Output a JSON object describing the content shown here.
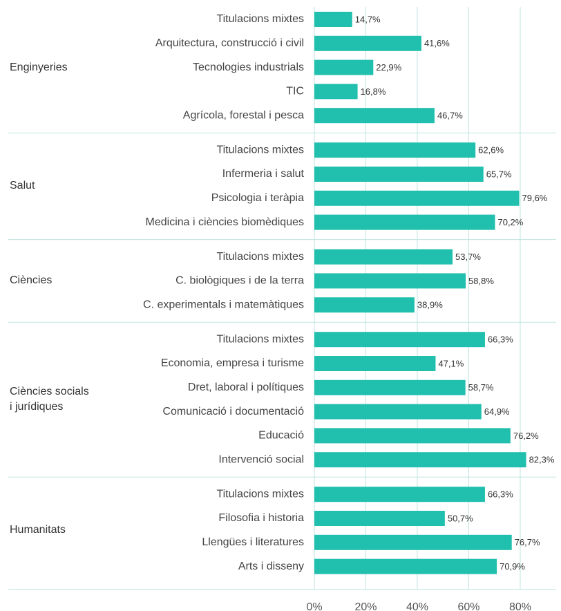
{
  "chart_data": {
    "type": "bar",
    "color": "#21bfad",
    "grid": true,
    "xlim": [
      0,
      95
    ],
    "xticks": [
      {
        "value": 0,
        "label": "0%"
      },
      {
        "value": 20,
        "label": "20%"
      },
      {
        "value": 40,
        "label": "40%"
      },
      {
        "value": 60,
        "label": "60%"
      },
      {
        "value": 80,
        "label": "80%"
      }
    ],
    "groups": [
      {
        "name": "Enginyeries",
        "categories": [
          "Titulacions mixtes",
          "Arquitectura, construcció i civil",
          "Tecnologies industrials",
          "TIC",
          "Agrícola, forestal i pesca"
        ],
        "values": [
          14.7,
          41.6,
          22.9,
          16.8,
          46.7
        ],
        "value_labels": [
          "14,7%",
          "41,6%",
          "22,9%",
          "16,8%",
          "46,7%"
        ]
      },
      {
        "name": "Salut",
        "categories": [
          "Titulacions mixtes",
          "Infermeria i salut",
          "Psicologia i teràpia",
          "Medicina i ciències biomèdiques"
        ],
        "values": [
          62.6,
          65.7,
          79.6,
          70.2
        ],
        "value_labels": [
          "62,6%",
          "65,7%",
          "79,6%",
          "70,2%"
        ]
      },
      {
        "name": "Ciències",
        "categories": [
          "Titulacions mixtes",
          "C. biològiques i de la terra",
          "C. experimentals i matemàtiques"
        ],
        "values": [
          53.7,
          58.8,
          38.9
        ],
        "value_labels": [
          "53,7%",
          "58,8%",
          "38,9%"
        ]
      },
      {
        "name": "Ciències socials i jurídiques",
        "categories": [
          "Titulacions mixtes",
          "Economia, empresa i turisme",
          "Dret, laboral i polítiques",
          "Comunicació i documentació",
          "Educació",
          "Intervenció social"
        ],
        "values": [
          66.3,
          47.1,
          58.7,
          64.9,
          76.2,
          82.3
        ],
        "value_labels": [
          "66,3%",
          "47,1%",
          "58,7%",
          "64,9%",
          "76,2%",
          "82,3%"
        ]
      },
      {
        "name": "Humanitats",
        "categories": [
          "Titulacions mixtes",
          "Filosofia i historia",
          "Llengües i literatures",
          "Arts i disseny"
        ],
        "values": [
          66.3,
          50.7,
          76.7,
          70.9
        ],
        "value_labels": [
          "66,3%",
          "50,7%",
          "76,7%",
          "70,9%"
        ]
      }
    ]
  }
}
